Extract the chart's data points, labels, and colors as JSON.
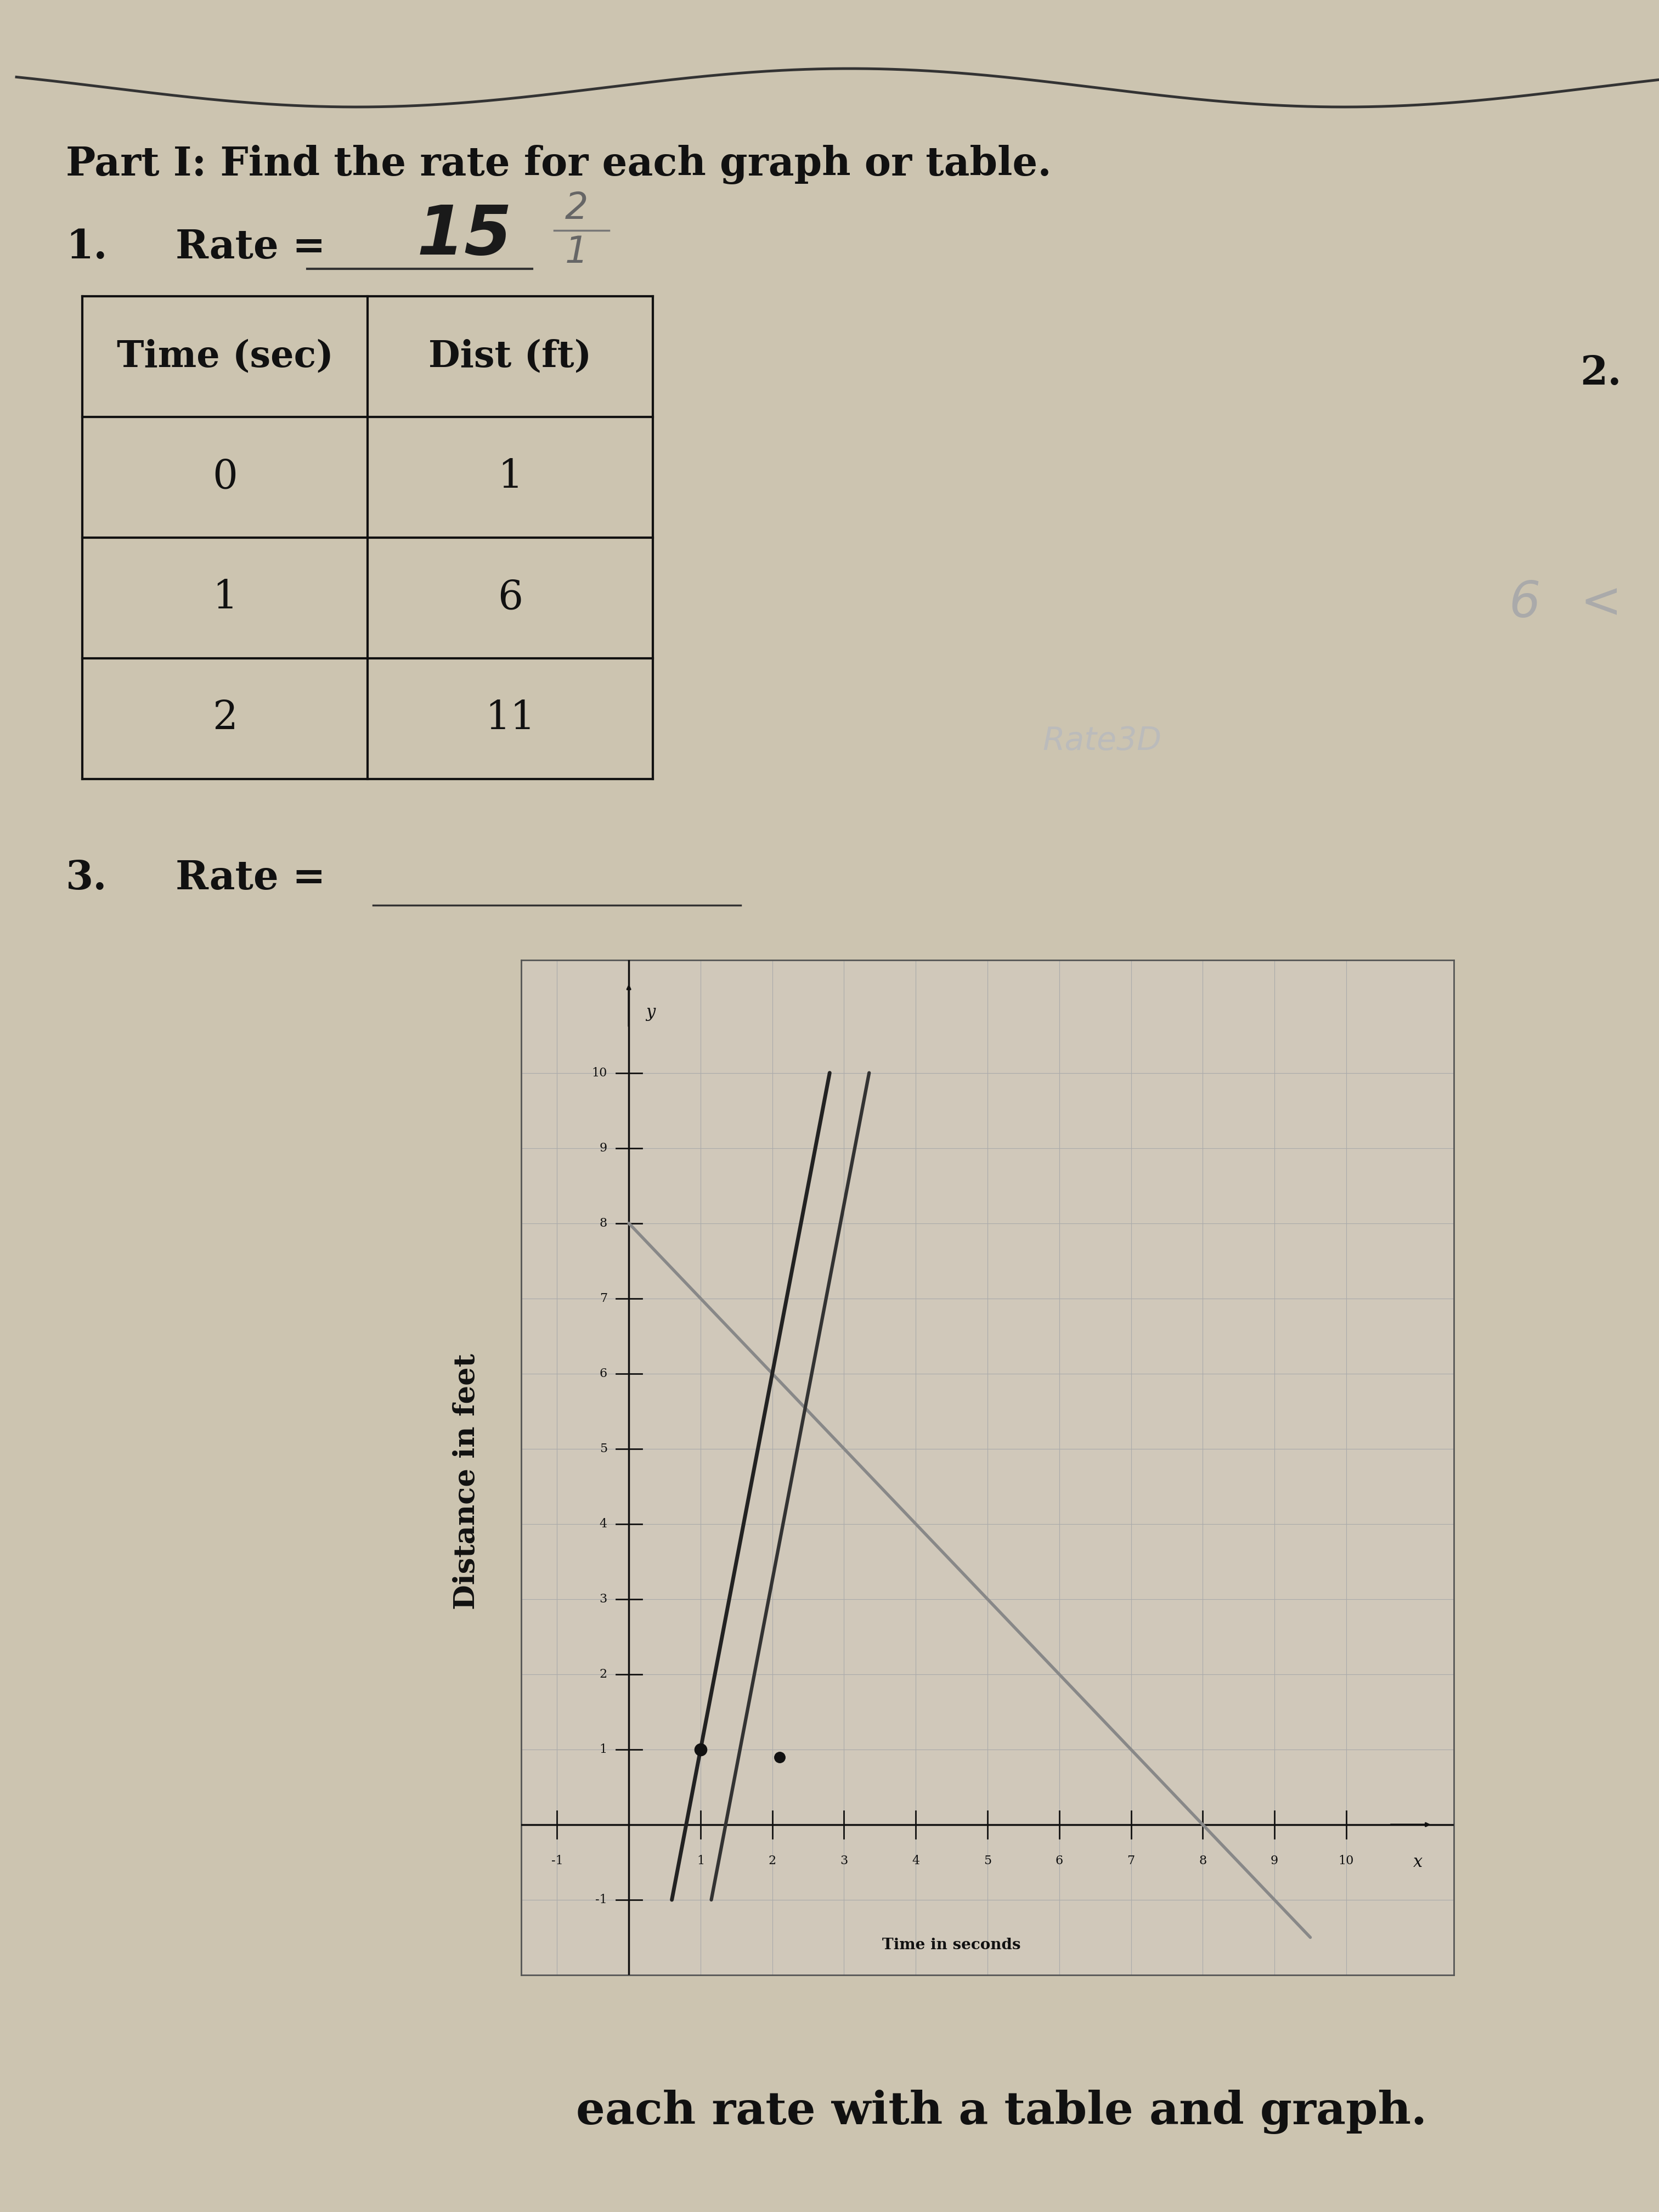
{
  "bg_color": "#b8af9f",
  "paper_color": "#ccc4b0",
  "title_text": "Part I: Find the rate for each graph or table.",
  "item1_label": "1.",
  "rate_label": "Rate = ",
  "rate_value": "15",
  "frac_num": "2",
  "frac_den": "1",
  "item2_label": "2.",
  "item3_label": "3.",
  "table_headers": [
    "Time (sec)",
    "Dist (ft)"
  ],
  "table_data": [
    [
      "0",
      "1"
    ],
    [
      "1",
      "6"
    ],
    [
      "2",
      "11"
    ]
  ],
  "graph_xlabel": "Time in seconds",
  "graph_ylabel": "Distance in feet",
  "bottom_text": "each rate with a table and graph.",
  "line1_color": "#222222",
  "line2_color": "#888888",
  "dot_color": "#111111",
  "grid_color": "#aaaaaa",
  "text_color": "#111111",
  "wave_color": "#333333",
  "rate3d_text": "Rate3D"
}
